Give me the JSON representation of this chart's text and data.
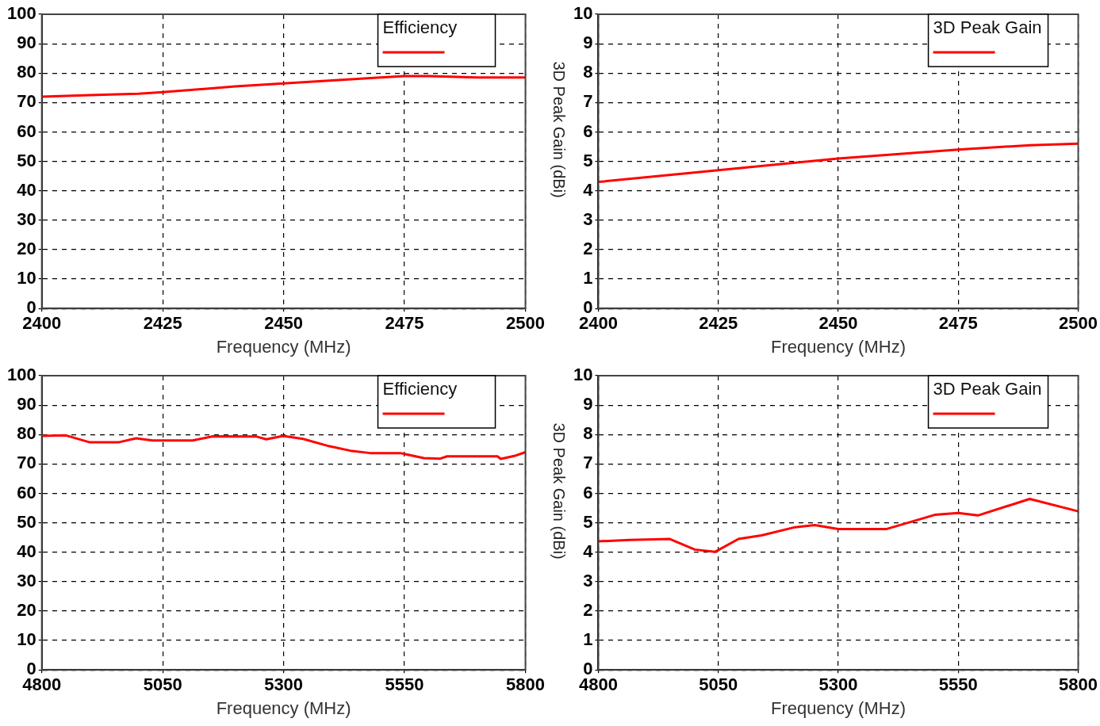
{
  "chart_data": [
    {
      "type": "line",
      "xlabel": "Frequency (MHz)",
      "legend_title": "Efficiency",
      "grid": true,
      "marker": "none",
      "xlim": [
        2400,
        2500
      ],
      "xticks": [
        2400,
        2425,
        2450,
        2475,
        2500
      ],
      "ylim": [
        0,
        100
      ],
      "yticks": [
        0,
        10,
        20,
        30,
        40,
        50,
        60,
        70,
        80,
        90,
        100
      ],
      "x": [
        2400,
        2410,
        2420,
        2425,
        2440,
        2450,
        2460,
        2470,
        2475,
        2480,
        2490,
        2500
      ],
      "series": [
        {
          "color": "#ff0000",
          "values": [
            72,
            72.5,
            73,
            73.5,
            75.5,
            76.5,
            77.5,
            78.5,
            79,
            79,
            78.5,
            78.5
          ]
        }
      ]
    },
    {
      "type": "line",
      "xlabel": "Frequency (MHz)",
      "ylabel": "3D Peak Gain (dBi)",
      "legend_title": "3D Peak Gain",
      "grid": true,
      "marker": "none",
      "xlim": [
        2400,
        2500
      ],
      "xticks": [
        2400,
        2425,
        2450,
        2475,
        2500
      ],
      "ylim": [
        0,
        10
      ],
      "yticks": [
        0,
        1,
        2,
        3,
        4,
        5,
        6,
        7,
        8,
        9,
        10
      ],
      "x": [
        2400,
        2425,
        2450,
        2475,
        2490,
        2500
      ],
      "series": [
        {
          "color": "#ff0000",
          "values": [
            4.3,
            4.7,
            5.1,
            5.4,
            5.55,
            5.6
          ]
        }
      ]
    },
    {
      "type": "line",
      "xlabel": "Frequency (MHz)",
      "legend_title": "Efficiency",
      "grid": true,
      "marker": "none",
      "xlim": [
        4800,
        5800
      ],
      "xticks": [
        4800,
        5050,
        5300,
        5550,
        5800
      ],
      "ylim": [
        0,
        100
      ],
      "yticks": [
        0,
        10,
        20,
        30,
        40,
        50,
        60,
        70,
        80,
        90,
        100
      ],
      "x": [
        4800,
        4850,
        4898,
        4960,
        4995,
        5029,
        5112,
        5154,
        5244,
        5264,
        5299,
        5340,
        5395,
        5438,
        5479,
        5541,
        5590,
        5624,
        5638,
        5742,
        5749,
        5777,
        5800
      ],
      "series": [
        {
          "color": "#ff0000",
          "values": [
            79.5,
            79.7,
            77.4,
            77.4,
            78.7,
            78,
            78,
            79.4,
            79.3,
            78.4,
            79.5,
            78.5,
            76,
            74.5,
            73.7,
            73.7,
            72,
            71.8,
            72.6,
            72.6,
            71.7,
            72.7,
            74
          ]
        }
      ]
    },
    {
      "type": "line",
      "xlabel": "Frequency (MHz)",
      "ylabel": "3D Peak Gain (dBi)",
      "legend_title": "3D Peak Gain",
      "grid": true,
      "marker": "none",
      "xlim": [
        4800,
        5800
      ],
      "xticks": [
        4800,
        5050,
        5300,
        5550,
        5800
      ],
      "ylim": [
        0,
        10
      ],
      "yticks": [
        0,
        1,
        2,
        3,
        4,
        5,
        6,
        7,
        8,
        9,
        10
      ],
      "x": [
        4800,
        4866,
        4949,
        5001,
        5043,
        5092,
        5140,
        5210,
        5251,
        5300,
        5401,
        5501,
        5550,
        5591,
        5699,
        5800
      ],
      "series": [
        {
          "color": "#ff0000",
          "values": [
            4.37,
            4.42,
            4.45,
            4.09,
            4.01,
            4.45,
            4.57,
            4.85,
            4.92,
            4.79,
            4.79,
            5.27,
            5.33,
            5.25,
            5.81,
            5.39
          ]
        }
      ]
    }
  ]
}
